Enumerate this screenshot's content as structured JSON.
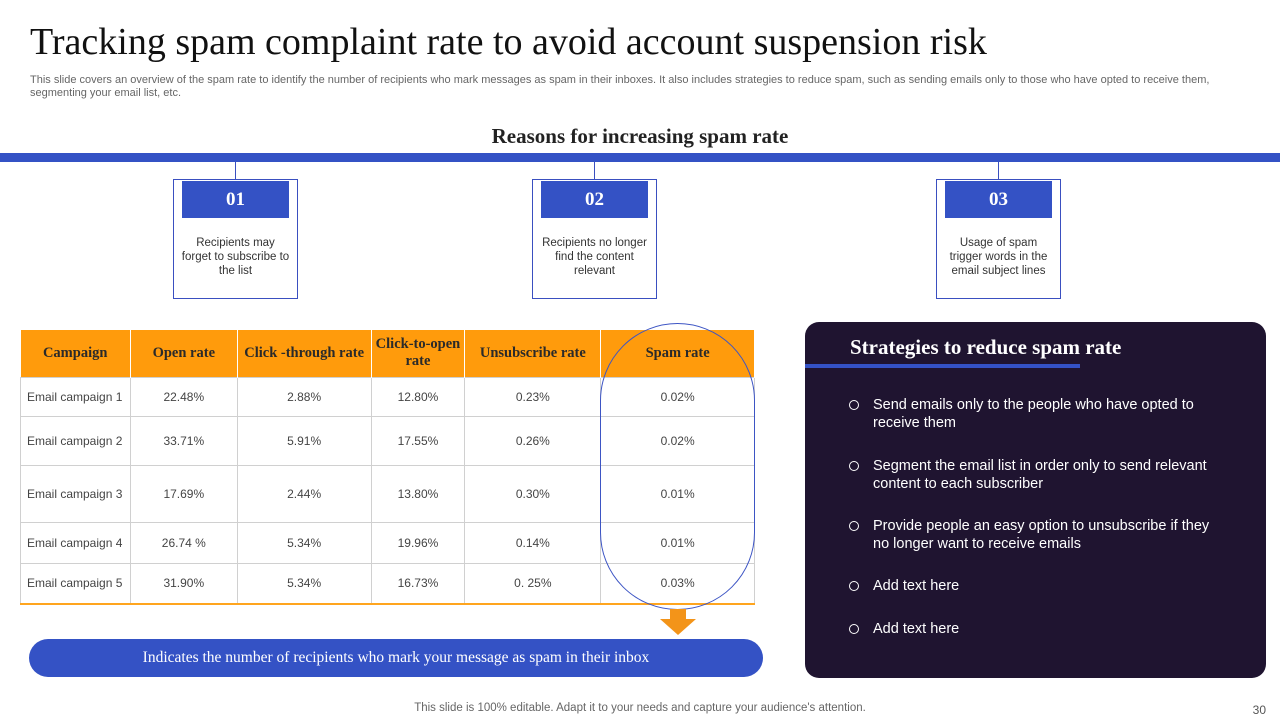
{
  "title": "Tracking spam complaint rate to avoid account suspension risk",
  "subtitle": "This slide covers an overview of the spam rate to identify the number of recipients who mark messages as spam in their inboxes. It also includes strategies to reduce spam, such as sending emails only to those who have opted to receive them, segmenting your email list, etc.",
  "reasons": {
    "heading": "Reasons for increasing spam rate",
    "items": [
      {
        "num": "01",
        "text": "Recipients may forget to subscribe to the list"
      },
      {
        "num": "02",
        "text": "Recipients no longer find the content relevant"
      },
      {
        "num": "03",
        "text": "Usage of spam trigger words in the email subject lines"
      }
    ]
  },
  "table": {
    "headers": [
      "Campaign",
      "Open rate",
      "Click -through rate",
      "Click-to-open rate",
      "Unsubscribe rate",
      "Spam rate"
    ],
    "rows": [
      [
        "Email campaign 1",
        "22.48%",
        "2.88%",
        "12.80%",
        "0.23%",
        "0.02%"
      ],
      [
        "Email campaign 2",
        "33.71%",
        "5.91%",
        "17.55%",
        "0.26%",
        "0.02%"
      ],
      [
        "Email campaign 3",
        "17.69%",
        "2.44%",
        "13.80%",
        "0.30%",
        "0.01%"
      ],
      [
        "Email campaign 4",
        "26.74 %",
        "5.34%",
        "19.96%",
        "0.14%",
        "0.01%"
      ],
      [
        "Email campaign 5",
        "31.90%",
        "5.34%",
        "16.73%",
        "0. 25%",
        "0.03%"
      ]
    ]
  },
  "callout": "Indicates the number of recipients who mark your message as spam in their inbox",
  "strategies": {
    "title": "Strategies to reduce spam rate",
    "items": [
      "Send emails only to the people who have opted to receive them",
      "Segment the email list in order only to send relevant content to each subscriber",
      "Provide people an easy option to unsubscribe if they no longer want to receive emails",
      "Add text here",
      "Add text here"
    ]
  },
  "footer": "This slide is 100% editable. Adapt it to your needs and capture your audience's attention.",
  "page_number": "30",
  "colors": {
    "accent_blue": "#3452c5",
    "header_orange": "#ff9b0c",
    "panel_dark": "#1f1430"
  }
}
